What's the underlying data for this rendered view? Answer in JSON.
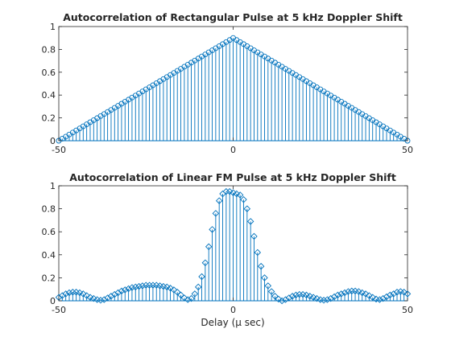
{
  "chart_data": [
    {
      "type": "stem",
      "title": "Autocorrelation of Rectangular Pulse at 5 kHz Doppler Shift",
      "xlabel": "",
      "ylabel": "",
      "xlim": [
        -50,
        50
      ],
      "ylim": [
        0,
        1
      ],
      "xticks": [
        -50,
        0,
        50
      ],
      "yticks": [
        0,
        0.2,
        0.4,
        0.6,
        0.8,
        1
      ],
      "xtick_labels": [
        "-50",
        "0",
        "50"
      ],
      "ytick_labels": [
        "0",
        "0.2",
        "0.4",
        "0.6",
        "0.8",
        "1"
      ],
      "grid": false,
      "marker": "circle",
      "color": "#0072BD",
      "sample_step": 1,
      "series_shape": "triangle",
      "x_range": [
        -50,
        50
      ],
      "peak_value": 0.9
    },
    {
      "type": "stem",
      "title": "Autocorrelation of Linear FM Pulse at 5 kHz Doppler Shift",
      "xlabel": "Delay (μ sec)",
      "ylabel": "",
      "xlim": [
        -50,
        50
      ],
      "ylim": [
        0,
        1
      ],
      "xticks": [
        -50,
        0,
        50
      ],
      "yticks": [
        0,
        0.2,
        0.4,
        0.6,
        0.8,
        1
      ],
      "xtick_labels": [
        "-50",
        "0",
        "50"
      ],
      "ytick_labels": [
        "0",
        "0.2",
        "0.4",
        "0.6",
        "0.8",
        "1"
      ],
      "grid": false,
      "marker": "diamond",
      "color": "#0072BD",
      "sample_step": 1,
      "x": [
        -50,
        -49,
        -48,
        -47,
        -46,
        -45,
        -44,
        -43,
        -42,
        -41,
        -40,
        -39,
        -38,
        -37,
        -36,
        -35,
        -34,
        -33,
        -32,
        -31,
        -30,
        -29,
        -28,
        -27,
        -26,
        -25,
        -24,
        -23,
        -22,
        -21,
        -20,
        -19,
        -18,
        -17,
        -16,
        -15,
        -14,
        -13,
        -12,
        -11,
        -10,
        -9,
        -8,
        -7,
        -6,
        -5,
        -4,
        -3,
        -2,
        -1,
        0,
        1,
        2,
        3,
        4,
        5,
        6,
        7,
        8,
        9,
        10,
        11,
        12,
        13,
        14,
        15,
        16,
        17,
        18,
        19,
        20,
        21,
        22,
        23,
        24,
        25,
        26,
        27,
        28,
        29,
        30,
        31,
        32,
        33,
        34,
        35,
        36,
        37,
        38,
        39,
        40,
        41,
        42,
        43,
        44,
        45,
        46,
        47,
        48,
        49,
        50
      ],
      "values": [
        0.03,
        0.045,
        0.06,
        0.07,
        0.075,
        0.075,
        0.07,
        0.06,
        0.045,
        0.03,
        0.02,
        0.01,
        0.005,
        0.01,
        0.025,
        0.04,
        0.055,
        0.07,
        0.085,
        0.095,
        0.105,
        0.115,
        0.12,
        0.125,
        0.13,
        0.135,
        0.135,
        0.135,
        0.135,
        0.13,
        0.125,
        0.12,
        0.11,
        0.095,
        0.075,
        0.05,
        0.025,
        0.01,
        0.02,
        0.06,
        0.12,
        0.21,
        0.33,
        0.47,
        0.62,
        0.76,
        0.87,
        0.93,
        0.95,
        0.95,
        0.94,
        0.93,
        0.92,
        0.88,
        0.8,
        0.69,
        0.56,
        0.42,
        0.3,
        0.2,
        0.13,
        0.08,
        0.04,
        0.015,
        0.0,
        0.01,
        0.025,
        0.04,
        0.05,
        0.055,
        0.055,
        0.05,
        0.04,
        0.03,
        0.02,
        0.01,
        0.005,
        0.01,
        0.02,
        0.035,
        0.05,
        0.06,
        0.07,
        0.08,
        0.085,
        0.085,
        0.08,
        0.07,
        0.06,
        0.045,
        0.03,
        0.015,
        0.01,
        0.02,
        0.035,
        0.05,
        0.06,
        0.075,
        0.08,
        0.075,
        0.06
      ]
    }
  ]
}
